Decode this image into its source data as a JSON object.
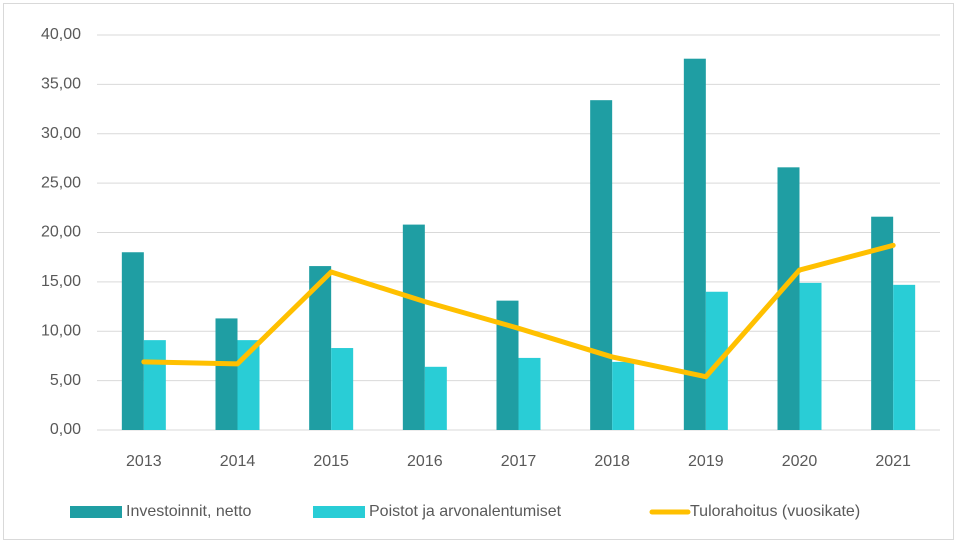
{
  "chart_data": {
    "type": "bar-line",
    "categories": [
      "2013",
      "2014",
      "2015",
      "2016",
      "2017",
      "2018",
      "2019",
      "2020",
      "2021"
    ],
    "series": [
      {
        "name": "Investoinnit, netto",
        "type": "bar",
        "color": "#1f9ea3",
        "values": [
          18.0,
          11.3,
          16.6,
          20.8,
          13.1,
          33.4,
          37.6,
          26.6,
          21.6
        ]
      },
      {
        "name": "Poistot ja arvonalentumiset",
        "type": "bar",
        "color": "#29cdd6",
        "values": [
          9.1,
          9.1,
          8.3,
          6.4,
          7.3,
          6.9,
          14.0,
          14.9,
          14.7
        ]
      },
      {
        "name": "Tulorahoitus (vuosikate)",
        "type": "line",
        "color": "#ffc000",
        "values": [
          6.9,
          6.7,
          16.0,
          13.0,
          10.3,
          7.4,
          5.4,
          16.2,
          18.7
        ]
      }
    ],
    "ylim": [
      0,
      40
    ],
    "yticks": [
      {
        "value": 0,
        "label": "0,00"
      },
      {
        "value": 5,
        "label": "5,00"
      },
      {
        "value": 10,
        "label": "10,00"
      },
      {
        "value": 15,
        "label": "15,00"
      },
      {
        "value": 20,
        "label": "20,00"
      },
      {
        "value": 25,
        "label": "25,00"
      },
      {
        "value": 30,
        "label": "30,00"
      },
      {
        "value": 35,
        "label": "35,00"
      },
      {
        "value": 40,
        "label": "40,00"
      }
    ],
    "grid": true,
    "legend": "bottom"
  }
}
